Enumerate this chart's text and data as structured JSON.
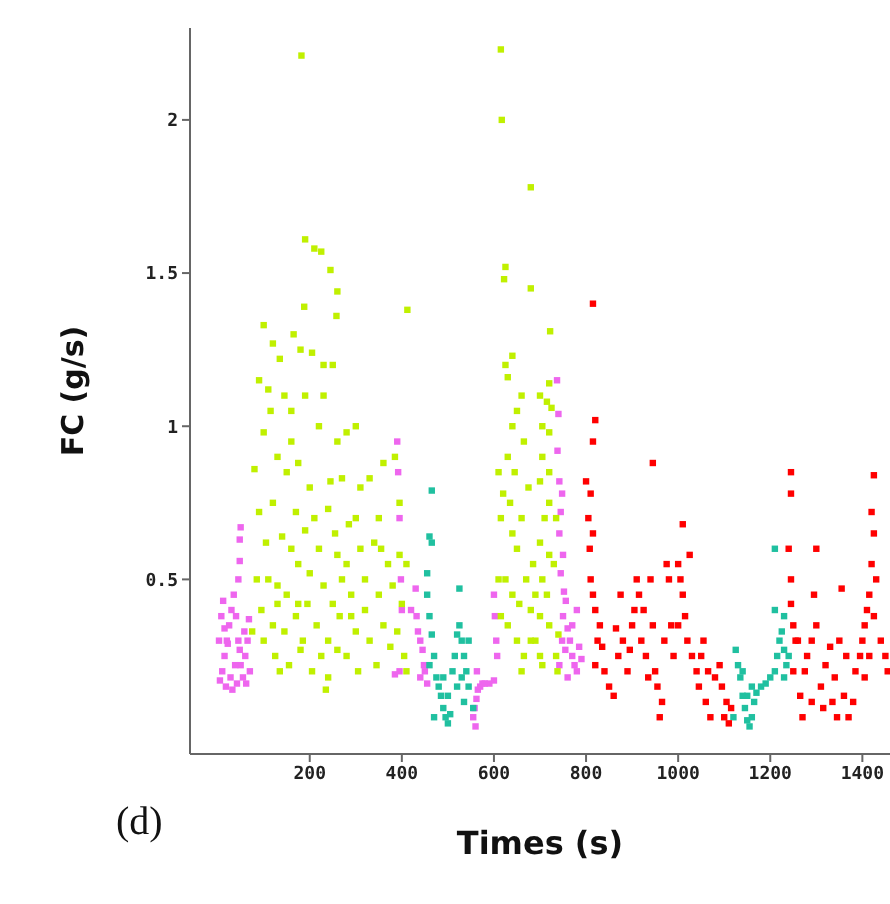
{
  "chart_data": {
    "type": "scatter",
    "xlabel": "Times (s)",
    "ylabel": "FC (g/s)",
    "annotations": [
      "(d)"
    ],
    "marker": "square",
    "xlim": [
      -60,
      1460
    ],
    "xticks": [
      200,
      400,
      600,
      800,
      1000,
      1200,
      1400
    ],
    "ylim": [
      -0.07,
      2.3
    ],
    "yticks": [
      0.5,
      1,
      1.5,
      2
    ],
    "series": [
      {
        "color": "#ee66ee",
        "x": [
          5,
          10,
          15,
          20,
          25,
          8,
          30,
          12,
          35,
          40,
          45,
          50,
          55,
          60,
          65,
          70,
          18,
          28,
          38,
          48,
          58,
          68,
          45,
          48,
          48,
          50,
          22,
          32,
          42,
          62,
          3,
          15,
          390,
          392,
          395,
          398,
          400,
          395,
          385,
          430,
          432,
          440,
          445,
          448,
          450,
          435,
          440,
          455,
          420,
          555,
          558,
          562,
          565,
          570,
          575,
          580,
          590,
          600,
          560,
          563,
          600,
          602,
          605,
          607,
          737,
          740,
          738,
          742,
          748,
          745,
          742,
          750,
          745,
          752,
          756,
          750,
          760,
          765,
          755,
          770,
          775,
          780,
          760,
          742,
          785,
          790,
          770,
          748,
          780
        ],
        "values": [
          0.17,
          0.2,
          0.25,
          0.3,
          0.35,
          0.38,
          0.4,
          0.43,
          0.45,
          0.38,
          0.3,
          0.22,
          0.18,
          0.25,
          0.3,
          0.2,
          0.15,
          0.18,
          0.22,
          0.27,
          0.33,
          0.37,
          0.5,
          0.56,
          0.63,
          0.67,
          0.29,
          0.14,
          0.16,
          0.16,
          0.3,
          0.34,
          0.95,
          0.85,
          0.7,
          0.5,
          0.4,
          0.2,
          0.19,
          0.47,
          0.38,
          0.3,
          0.27,
          0.22,
          0.2,
          0.33,
          0.18,
          0.16,
          0.4,
          0.05,
          0.08,
          0.11,
          0.14,
          0.15,
          0.16,
          0.16,
          0.16,
          0.17,
          0.02,
          0.2,
          0.45,
          0.38,
          0.3,
          0.25,
          1.15,
          1.04,
          0.92,
          0.82,
          0.78,
          0.72,
          0.65,
          0.58,
          0.52,
          0.46,
          0.43,
          0.38,
          0.34,
          0.3,
          0.27,
          0.25,
          0.22,
          0.2,
          0.18,
          0.22,
          0.28,
          0.24,
          0.35,
          0.3,
          0.4
        ]
      },
      {
        "color": "#c0f000",
        "x": [
          182,
          190,
          210,
          225,
          245,
          260,
          258,
          188,
          412,
          100,
          165,
          120,
          180,
          205,
          230,
          250,
          135,
          90,
          110,
          145,
          160,
          190,
          220,
          260,
          300,
          280,
          100,
          130,
          80,
          150,
          175,
          200,
          245,
          270,
          310,
          330,
          360,
          385,
          395,
          350,
          300,
          240,
          210,
          170,
          120,
          90,
          105,
          140,
          160,
          190,
          220,
          260,
          280,
          310,
          340,
          370,
          395,
          410,
          85,
          110,
          130,
          150,
          175,
          200,
          230,
          250,
          290,
          320,
          350,
          380,
          400,
          95,
          120,
          145,
          170,
          195,
          215,
          240,
          265,
          300,
          330,
          360,
          390,
          75,
          100,
          125,
          155,
          180,
          205,
          235,
          240,
          280,
          305,
          345,
          375,
          405,
          130,
          185,
          260,
          320,
          355,
          255,
          285,
          160,
          115,
          230,
          175,
          290,
          270,
          225,
          135,
          410,
          615,
          617,
          680,
          625,
          622,
          680,
          625,
          640,
          630,
          650,
          700,
          722,
          720,
          715,
          725,
          705,
          720,
          705,
          720,
          700,
          720,
          710,
          735,
          700,
          720,
          730,
          705,
          715,
          700,
          720,
          740,
          738,
          705,
          690,
          735,
          610,
          615,
          620,
          630,
          635,
          640,
          645,
          650,
          660,
          665,
          675,
          685,
          625,
          640,
          655,
          670,
          680,
          690,
          650,
          665,
          680,
          615,
          630,
          660,
          640,
          660,
          610,
          700
        ],
        "values": [
          2.21,
          1.61,
          1.58,
          1.57,
          1.51,
          1.44,
          1.36,
          1.39,
          1.38,
          1.33,
          1.3,
          1.27,
          1.25,
          1.24,
          1.2,
          1.2,
          1.22,
          1.15,
          1.12,
          1.1,
          1.05,
          1.1,
          1.0,
          0.95,
          1.0,
          0.98,
          0.98,
          0.9,
          0.86,
          0.85,
          0.88,
          0.8,
          0.82,
          0.83,
          0.8,
          0.83,
          0.88,
          0.9,
          0.75,
          0.7,
          0.7,
          0.73,
          0.7,
          0.72,
          0.75,
          0.72,
          0.62,
          0.64,
          0.6,
          0.66,
          0.6,
          0.58,
          0.55,
          0.6,
          0.62,
          0.55,
          0.58,
          0.55,
          0.5,
          0.5,
          0.48,
          0.45,
          0.55,
          0.52,
          0.48,
          0.42,
          0.45,
          0.5,
          0.45,
          0.48,
          0.42,
          0.4,
          0.35,
          0.33,
          0.38,
          0.42,
          0.35,
          0.3,
          0.38,
          0.33,
          0.3,
          0.35,
          0.33,
          0.33,
          0.3,
          0.25,
          0.22,
          0.27,
          0.2,
          0.14,
          0.18,
          0.25,
          0.2,
          0.22,
          0.28,
          0.25,
          0.42,
          0.3,
          0.27,
          0.4,
          0.6,
          0.65,
          0.68,
          0.95,
          1.05,
          1.1,
          0.42,
          0.38,
          0.5,
          0.25,
          0.2,
          0.2,
          2.23,
          2.0,
          1.78,
          1.52,
          1.48,
          1.45,
          1.2,
          1.23,
          1.16,
          1.05,
          1.1,
          1.31,
          1.14,
          1.08,
          1.06,
          1.0,
          0.98,
          0.9,
          0.85,
          0.82,
          0.75,
          0.7,
          0.7,
          0.62,
          0.58,
          0.55,
          0.5,
          0.45,
          0.38,
          0.35,
          0.32,
          0.2,
          0.22,
          0.3,
          0.25,
          0.85,
          0.7,
          0.78,
          0.9,
          0.75,
          0.65,
          0.85,
          0.6,
          0.7,
          0.95,
          0.8,
          0.55,
          0.5,
          0.45,
          0.42,
          0.5,
          0.4,
          0.45,
          0.3,
          0.25,
          0.3,
          0.38,
          0.35,
          0.2,
          1.0,
          1.1,
          0.5,
          0.25
        ]
      },
      {
        "color": "#20c0a0",
        "x": [
          465,
          460,
          465,
          455,
          455,
          460,
          465,
          470,
          460,
          475,
          480,
          485,
          490,
          495,
          500,
          505,
          500,
          510,
          515,
          520,
          525,
          530,
          525,
          535,
          540,
          545,
          535,
          490,
          470,
          530,
          520,
          545,
          555,
          1210,
          1210,
          1125,
          1130,
          1135,
          1140,
          1145,
          1150,
          1155,
          1160,
          1165,
          1170,
          1180,
          1190,
          1200,
          1210,
          1215,
          1220,
          1225,
          1230,
          1235,
          1230,
          1120,
          1140,
          1150,
          1160,
          1230,
          1240
        ],
        "values": [
          0.79,
          0.64,
          0.62,
          0.52,
          0.45,
          0.38,
          0.32,
          0.25,
          0.22,
          0.18,
          0.15,
          0.12,
          0.08,
          0.05,
          0.03,
          0.06,
          0.12,
          0.2,
          0.25,
          0.32,
          0.35,
          0.3,
          0.47,
          0.25,
          0.2,
          0.15,
          0.1,
          0.18,
          0.05,
          0.18,
          0.15,
          0.3,
          0.08,
          0.6,
          0.4,
          0.27,
          0.22,
          0.18,
          0.12,
          0.08,
          0.04,
          0.02,
          0.05,
          0.1,
          0.13,
          0.15,
          0.16,
          0.18,
          0.2,
          0.25,
          0.3,
          0.33,
          0.27,
          0.22,
          0.18,
          0.05,
          0.2,
          0.12,
          0.15,
          0.38,
          0.25
        ]
      },
      {
        "color": "#ff0000",
        "x": [
          815,
          820,
          815,
          945,
          1245,
          1245,
          1425,
          1420,
          1010,
          800,
          810,
          805,
          815,
          808,
          810,
          815,
          820,
          830,
          825,
          820,
          835,
          840,
          850,
          860,
          870,
          875,
          880,
          890,
          900,
          905,
          910,
          915,
          920,
          930,
          940,
          945,
          950,
          955,
          960,
          965,
          970,
          975,
          980,
          985,
          990,
          1000,
          1005,
          1010,
          1015,
          1020,
          1025,
          1030,
          1040,
          1045,
          1050,
          1060,
          1065,
          1070,
          1080,
          1090,
          1095,
          1100,
          1105,
          1110,
          1115,
          925,
          935,
          895,
          865,
          1000,
          1055,
          1240,
          1245,
          1245,
          1250,
          1255,
          1250,
          1265,
          1270,
          1275,
          1280,
          1290,
          1295,
          1300,
          1300,
          1310,
          1315,
          1320,
          1330,
          1340,
          1345,
          1350,
          1355,
          1360,
          1365,
          1370,
          1380,
          1385,
          1395,
          1400,
          1405,
          1410,
          1415,
          1420,
          1425,
          1430,
          1440,
          1450,
          1455,
          1415,
          1405,
          1290,
          1335,
          1260,
          1425
        ],
        "values": [
          1.4,
          1.02,
          0.95,
          0.88,
          0.85,
          0.78,
          0.84,
          0.72,
          0.68,
          0.82,
          0.78,
          0.7,
          0.65,
          0.6,
          0.5,
          0.45,
          0.4,
          0.35,
          0.3,
          0.22,
          0.28,
          0.2,
          0.15,
          0.12,
          0.25,
          0.45,
          0.3,
          0.2,
          0.35,
          0.4,
          0.5,
          0.45,
          0.3,
          0.25,
          0.5,
          0.35,
          0.2,
          0.15,
          0.05,
          0.1,
          0.3,
          0.55,
          0.5,
          0.35,
          0.25,
          0.55,
          0.5,
          0.45,
          0.38,
          0.3,
          0.58,
          0.25,
          0.2,
          0.15,
          0.25,
          0.1,
          0.2,
          0.05,
          0.18,
          0.22,
          0.15,
          0.05,
          0.1,
          0.03,
          0.08,
          0.4,
          0.18,
          0.27,
          0.34,
          0.35,
          0.3,
          0.6,
          0.5,
          0.42,
          0.35,
          0.3,
          0.2,
          0.12,
          0.05,
          0.2,
          0.25,
          0.3,
          0.45,
          0.6,
          0.35,
          0.15,
          0.08,
          0.22,
          0.28,
          0.18,
          0.05,
          0.3,
          0.47,
          0.12,
          0.25,
          0.05,
          0.1,
          0.2,
          0.25,
          0.3,
          0.35,
          0.4,
          0.45,
          0.55,
          0.65,
          0.5,
          0.3,
          0.25,
          0.2,
          0.25,
          0.18,
          0.1,
          0.1,
          0.3,
          0.38
        ]
      }
    ]
  }
}
